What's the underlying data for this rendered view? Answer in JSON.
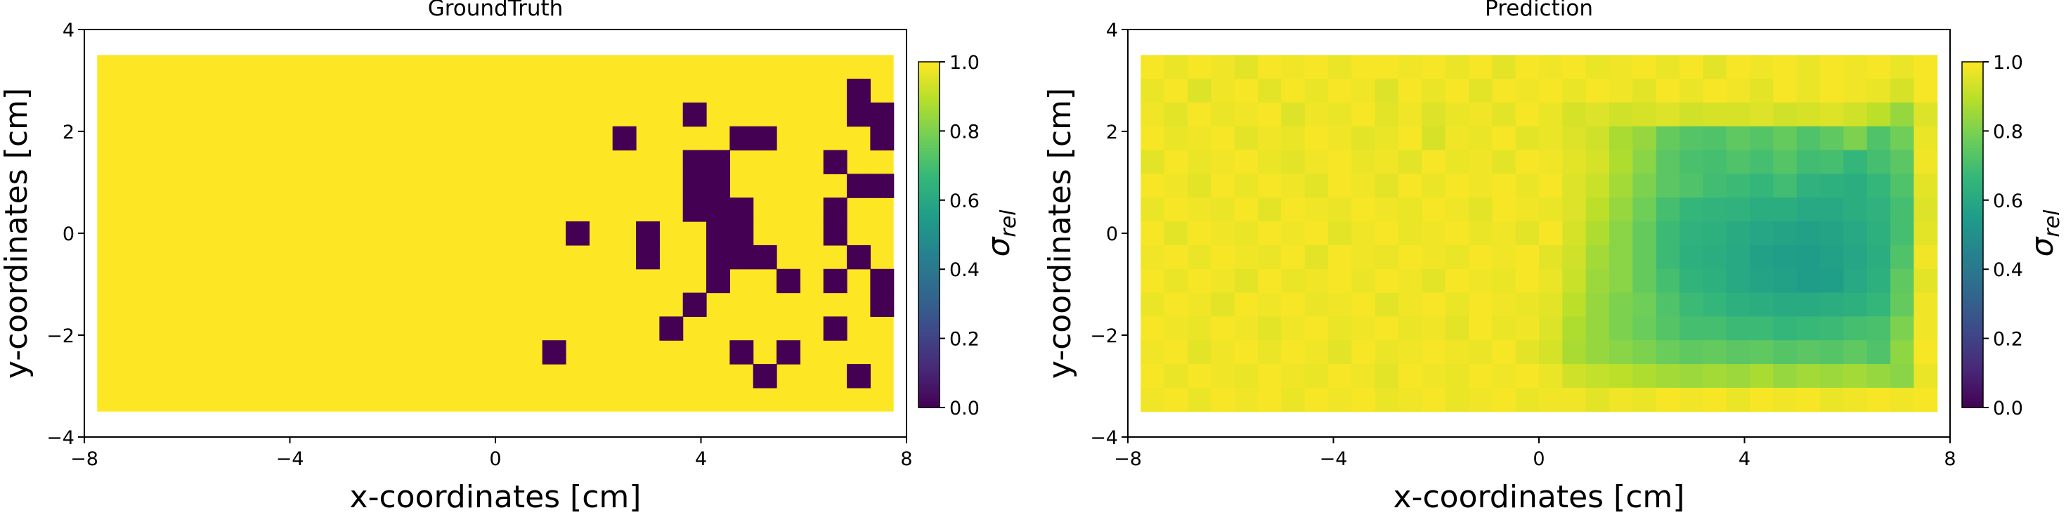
{
  "chart_data": [
    {
      "type": "heatmap",
      "title": "GroundTruth",
      "xlabel": "x-coordinates [cm]",
      "ylabel": "y-coordinates [cm]",
      "xlim": [
        -8,
        8
      ],
      "ylim": [
        -4,
        4
      ],
      "xticks": [
        -8,
        -4,
        0,
        4,
        8
      ],
      "yticks": [
        -4,
        -2,
        0,
        2,
        4
      ],
      "xtick_labels": [
        "−8",
        "−4",
        "0",
        "4",
        "8"
      ],
      "ytick_labels": [
        "−4",
        "−2",
        "0",
        "2",
        "4"
      ],
      "colormap": "viridis",
      "colorbar": {
        "label": "σrel",
        "label_base": "σ",
        "label_sub": "rel",
        "range": [
          0,
          1
        ],
        "ticks": [
          "0.0",
          "0.2",
          "0.4",
          "0.6",
          "0.8",
          "1.0"
        ]
      },
      "grid": {
        "nx": 34,
        "ny": 15,
        "x_range": [
          -7.75,
          7.75
        ],
        "y_range": [
          -3.5,
          3.5
        ]
      },
      "background_value": 1.0,
      "cells": [
        {
          "x": 6.9,
          "y": 2.8,
          "v": 0.0
        },
        {
          "x": 6.9,
          "y": 2.3,
          "v": 0.0
        },
        {
          "x": 7.4,
          "y": 2.3,
          "v": 0.0
        },
        {
          "x": 7.4,
          "y": 1.8,
          "v": 0.0
        },
        {
          "x": 3.8,
          "y": 2.3,
          "v": 0.0
        },
        {
          "x": 2.3,
          "y": 1.8,
          "v": 0.0
        },
        {
          "x": 4.7,
          "y": 1.8,
          "v": 0.0
        },
        {
          "x": 5.2,
          "y": 1.8,
          "v": 0.0
        },
        {
          "x": 3.8,
          "y": 1.4,
          "v": 0.0
        },
        {
          "x": 3.8,
          "y": 0.9,
          "v": 0.0
        },
        {
          "x": 3.8,
          "y": 0.5,
          "v": 0.0
        },
        {
          "x": 4.3,
          "y": 0.9,
          "v": 0.0
        },
        {
          "x": 4.3,
          "y": 0.5,
          "v": 0.0
        },
        {
          "x": 4.3,
          "y": 1.4,
          "v": 0.0
        },
        {
          "x": 6.4,
          "y": 1.4,
          "v": 0.0
        },
        {
          "x": 6.9,
          "y": 0.9,
          "v": 0.0
        },
        {
          "x": 7.4,
          "y": 0.9,
          "v": 0.0
        },
        {
          "x": 4.7,
          "y": 0.5,
          "v": 0.0
        },
        {
          "x": 6.4,
          "y": 0.5,
          "v": 0.0
        },
        {
          "x": 1.4,
          "y": 0.0,
          "v": 0.0
        },
        {
          "x": 2.8,
          "y": 0.0,
          "v": 0.0
        },
        {
          "x": 4.3,
          "y": 0.0,
          "v": 0.0
        },
        {
          "x": 4.7,
          "y": 0.0,
          "v": 0.0
        },
        {
          "x": 6.4,
          "y": 0.0,
          "v": 0.0
        },
        {
          "x": 2.8,
          "y": -0.5,
          "v": 0.0
        },
        {
          "x": 4.3,
          "y": -0.5,
          "v": 0.0
        },
        {
          "x": 4.7,
          "y": -0.5,
          "v": 0.0
        },
        {
          "x": 5.2,
          "y": -0.5,
          "v": 0.0
        },
        {
          "x": 6.9,
          "y": -0.5,
          "v": 0.0
        },
        {
          "x": 4.3,
          "y": -0.9,
          "v": 0.0
        },
        {
          "x": 5.8,
          "y": -0.9,
          "v": 0.0
        },
        {
          "x": 6.4,
          "y": -0.9,
          "v": 0.0
        },
        {
          "x": 7.4,
          "y": -0.9,
          "v": 0.0
        },
        {
          "x": 3.8,
          "y": -1.4,
          "v": 0.0
        },
        {
          "x": 7.4,
          "y": -1.4,
          "v": 0.0
        },
        {
          "x": 3.3,
          "y": -1.8,
          "v": 0.0
        },
        {
          "x": 6.4,
          "y": -1.8,
          "v": 0.0
        },
        {
          "x": 1.0,
          "y": -2.3,
          "v": 0.0
        },
        {
          "x": 4.7,
          "y": -2.3,
          "v": 0.0
        },
        {
          "x": 5.8,
          "y": -2.3,
          "v": 0.0
        },
        {
          "x": 5.2,
          "y": -2.8,
          "v": 0.0
        },
        {
          "x": 6.9,
          "y": -2.8,
          "v": 0.0
        }
      ]
    },
    {
      "type": "heatmap",
      "title": "Prediction",
      "xlabel": "x-coordinates [cm]",
      "ylabel": "y-coordinates [cm]",
      "xlim": [
        -8,
        8
      ],
      "ylim": [
        -4,
        4
      ],
      "xticks": [
        -8,
        -4,
        0,
        4,
        8
      ],
      "yticks": [
        -4,
        -2,
        0,
        2,
        4
      ],
      "xtick_labels": [
        "−8",
        "−4",
        "0",
        "4",
        "8"
      ],
      "ytick_labels": [
        "−4",
        "−2",
        "0",
        "2",
        "4"
      ],
      "colormap": "viridis",
      "colorbar": {
        "label": "σrel",
        "label_base": "σ",
        "label_sub": "rel",
        "range": [
          0,
          1
        ],
        "ticks": [
          "0.0",
          "0.2",
          "0.4",
          "0.6",
          "0.8",
          "1.0"
        ]
      },
      "grid": {
        "nx": 34,
        "ny": 15,
        "x_range": [
          -7.75,
          7.75
        ],
        "y_range": [
          -3.5,
          3.5
        ]
      },
      "values": [
        [
          0.99,
          0.97,
          0.99,
          0.98,
          0.96,
          0.99,
          0.98,
          0.99,
          0.97,
          0.99,
          0.99,
          0.98,
          0.99,
          0.97,
          0.99,
          0.96,
          0.99,
          0.98,
          0.99,
          0.97,
          0.98,
          0.99,
          0.97,
          0.99,
          0.96,
          0.99,
          0.98,
          0.99,
          0.97,
          0.99,
          0.98,
          0.99,
          0.97,
          0.99
        ],
        [
          0.97,
          0.99,
          0.95,
          0.98,
          0.99,
          0.96,
          0.99,
          0.97,
          0.99,
          0.98,
          0.95,
          0.99,
          0.97,
          0.99,
          0.96,
          0.99,
          0.98,
          0.99,
          0.97,
          0.99,
          0.98,
          0.96,
          0.99,
          0.97,
          0.99,
          0.98,
          0.96,
          0.99,
          0.97,
          0.99,
          0.98,
          0.97,
          0.94,
          0.99
        ],
        [
          0.98,
          0.96,
          0.99,
          0.97,
          0.98,
          0.99,
          0.95,
          0.98,
          0.97,
          0.99,
          0.96,
          0.98,
          0.95,
          0.97,
          0.98,
          0.96,
          0.99,
          0.97,
          0.94,
          0.95,
          0.93,
          0.94,
          0.95,
          0.93,
          0.94,
          0.94,
          0.95,
          0.93,
          0.94,
          0.95,
          0.93,
          0.9,
          0.84,
          0.95
        ],
        [
          0.99,
          0.97,
          0.98,
          0.99,
          0.96,
          0.98,
          0.97,
          0.99,
          0.98,
          0.96,
          0.97,
          0.99,
          0.94,
          0.98,
          0.97,
          0.99,
          0.96,
          0.97,
          0.95,
          0.93,
          0.87,
          0.84,
          0.76,
          0.73,
          0.72,
          0.75,
          0.73,
          0.76,
          0.72,
          0.75,
          0.8,
          0.72,
          0.78,
          0.97
        ],
        [
          0.96,
          0.99,
          0.97,
          0.98,
          0.99,
          0.97,
          0.96,
          0.98,
          0.99,
          0.97,
          0.98,
          0.96,
          0.99,
          0.97,
          0.98,
          0.96,
          0.99,
          0.98,
          0.96,
          0.94,
          0.88,
          0.82,
          0.74,
          0.71,
          0.7,
          0.72,
          0.7,
          0.73,
          0.69,
          0.7,
          0.66,
          0.7,
          0.74,
          0.98
        ],
        [
          0.99,
          0.98,
          0.96,
          0.99,
          0.97,
          0.99,
          0.98,
          0.96,
          0.99,
          0.98,
          0.96,
          0.99,
          0.97,
          0.99,
          0.98,
          0.99,
          0.97,
          0.99,
          0.95,
          0.92,
          0.86,
          0.8,
          0.74,
          0.72,
          0.69,
          0.68,
          0.66,
          0.69,
          0.64,
          0.63,
          0.62,
          0.66,
          0.72,
          0.96
        ],
        [
          0.97,
          0.99,
          0.98,
          0.97,
          0.99,
          0.96,
          0.99,
          0.98,
          0.97,
          0.99,
          0.98,
          0.97,
          0.99,
          0.98,
          0.96,
          0.99,
          0.98,
          0.97,
          0.95,
          0.9,
          0.84,
          0.78,
          0.7,
          0.66,
          0.65,
          0.64,
          0.62,
          0.62,
          0.6,
          0.6,
          0.62,
          0.64,
          0.7,
          0.95
        ],
        [
          0.99,
          0.96,
          0.99,
          0.98,
          0.97,
          0.99,
          0.98,
          0.99,
          0.96,
          0.98,
          0.99,
          0.97,
          0.98,
          0.99,
          0.97,
          0.98,
          0.96,
          0.99,
          0.94,
          0.88,
          0.82,
          0.76,
          0.68,
          0.64,
          0.63,
          0.61,
          0.59,
          0.58,
          0.57,
          0.58,
          0.6,
          0.63,
          0.7,
          0.96
        ],
        [
          0.98,
          0.99,
          0.97,
          0.99,
          0.98,
          0.97,
          0.99,
          0.96,
          0.99,
          0.98,
          0.97,
          0.99,
          0.98,
          0.97,
          0.99,
          0.98,
          0.99,
          0.96,
          0.93,
          0.86,
          0.82,
          0.76,
          0.68,
          0.63,
          0.62,
          0.6,
          0.57,
          0.56,
          0.55,
          0.57,
          0.59,
          0.62,
          0.72,
          0.98
        ],
        [
          0.99,
          0.97,
          0.99,
          0.98,
          0.96,
          0.99,
          0.97,
          0.98,
          0.99,
          0.97,
          0.99,
          0.98,
          0.96,
          0.99,
          0.98,
          0.97,
          0.99,
          0.97,
          0.92,
          0.85,
          0.82,
          0.76,
          0.7,
          0.65,
          0.63,
          0.6,
          0.58,
          0.57,
          0.55,
          0.56,
          0.6,
          0.63,
          0.75,
          0.96
        ],
        [
          0.97,
          0.99,
          0.98,
          0.96,
          0.99,
          0.98,
          0.99,
          0.97,
          0.98,
          0.99,
          0.96,
          0.98,
          0.99,
          0.97,
          0.99,
          0.98,
          0.97,
          0.96,
          0.9,
          0.84,
          0.8,
          0.78,
          0.72,
          0.68,
          0.66,
          0.63,
          0.62,
          0.61,
          0.61,
          0.62,
          0.63,
          0.66,
          0.76,
          0.98
        ],
        [
          0.99,
          0.98,
          0.97,
          0.99,
          0.98,
          0.96,
          0.98,
          0.99,
          0.97,
          0.98,
          0.99,
          0.97,
          0.98,
          0.96,
          0.99,
          0.97,
          0.98,
          0.95,
          0.88,
          0.84,
          0.8,
          0.77,
          0.73,
          0.7,
          0.7,
          0.68,
          0.68,
          0.66,
          0.67,
          0.68,
          0.7,
          0.71,
          0.8,
          0.98
        ],
        [
          0.98,
          0.99,
          0.96,
          0.98,
          0.99,
          0.97,
          0.99,
          0.98,
          0.96,
          0.99,
          0.97,
          0.98,
          0.99,
          0.98,
          0.97,
          0.99,
          0.96,
          0.94,
          0.87,
          0.84,
          0.82,
          0.8,
          0.77,
          0.75,
          0.76,
          0.74,
          0.75,
          0.73,
          0.74,
          0.73,
          0.75,
          0.72,
          0.83,
          0.99
        ],
        [
          0.99,
          0.97,
          0.99,
          0.98,
          0.97,
          0.99,
          0.98,
          0.97,
          0.99,
          0.98,
          0.96,
          0.99,
          0.98,
          0.97,
          0.99,
          0.98,
          0.99,
          0.97,
          0.93,
          0.91,
          0.9,
          0.88,
          0.86,
          0.85,
          0.86,
          0.85,
          0.87,
          0.84,
          0.86,
          0.85,
          0.86,
          0.84,
          0.82,
          0.97
        ],
        [
          0.98,
          0.99,
          0.97,
          0.99,
          0.98,
          0.99,
          0.97,
          0.99,
          0.98,
          0.99,
          0.97,
          0.98,
          0.99,
          0.97,
          0.98,
          0.99,
          0.97,
          0.98,
          0.98,
          0.96,
          0.98,
          0.97,
          0.99,
          0.98,
          0.99,
          0.97,
          0.99,
          0.98,
          0.99,
          0.97,
          0.98,
          0.99,
          0.98,
          0.99
        ]
      ]
    }
  ]
}
